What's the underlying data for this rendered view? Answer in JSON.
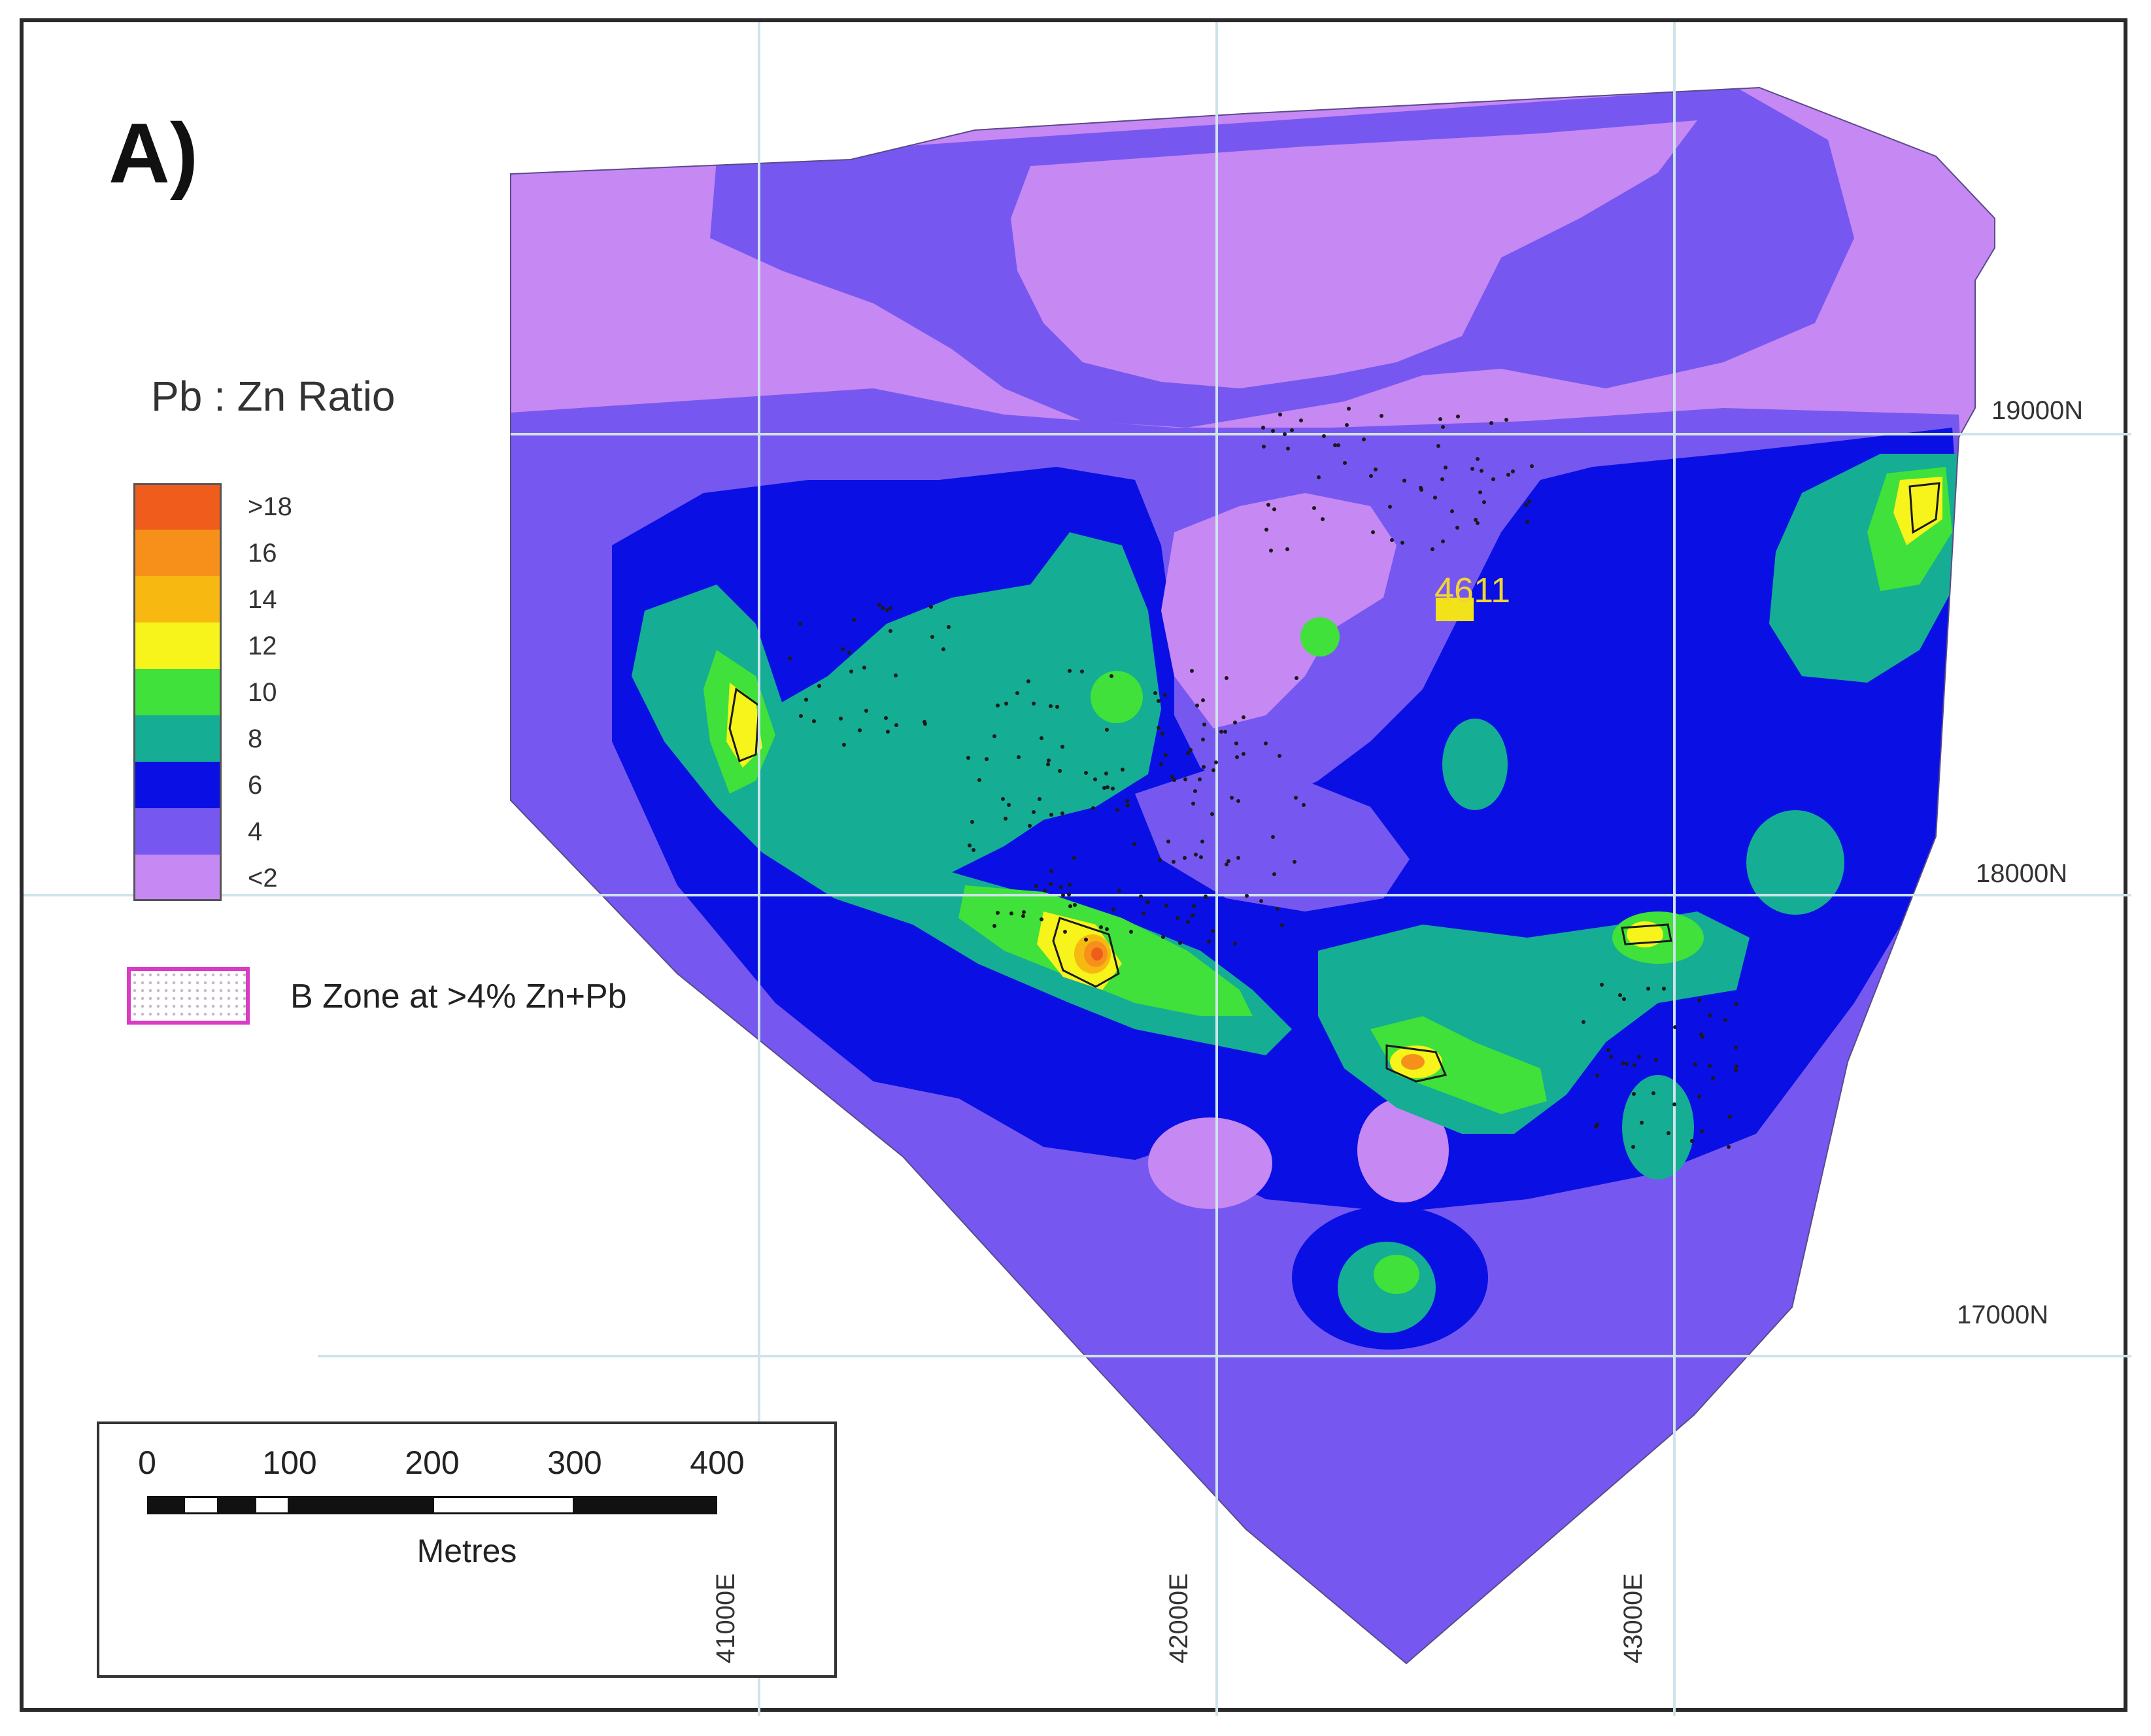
{
  "figure": {
    "panel_label": "A)",
    "legend": {
      "title": "Pb : Zn Ratio",
      "classes": [
        {
          "label": ">18",
          "color": "#f05c1b"
        },
        {
          "label": "16",
          "color": "#f6901a"
        },
        {
          "label": "14",
          "color": "#f8b812"
        },
        {
          "label": "12",
          "color": "#f6f41a"
        },
        {
          "label": "10",
          "color": "#3fe13a"
        },
        {
          "label": "8",
          "color": "#15ad94"
        },
        {
          "label": "6",
          "color": "#0a10e3"
        },
        {
          "label": "4",
          "color": "#7658f0"
        },
        {
          "label": "<2",
          "color": "#c688f3"
        }
      ]
    },
    "b_zone": {
      "label": "B Zone at >4% Zn+Pb",
      "outline_color": "#d93cc3"
    },
    "scale_bar": {
      "ticks": [
        "0",
        "100",
        "200",
        "300",
        "400"
      ],
      "unit": "Metres"
    },
    "grid": {
      "eastings": [
        "41000E",
        "42000E",
        "43000E"
      ],
      "northings": [
        "19000N",
        "18000N",
        "17000N"
      ]
    },
    "well_label": "4611"
  }
}
